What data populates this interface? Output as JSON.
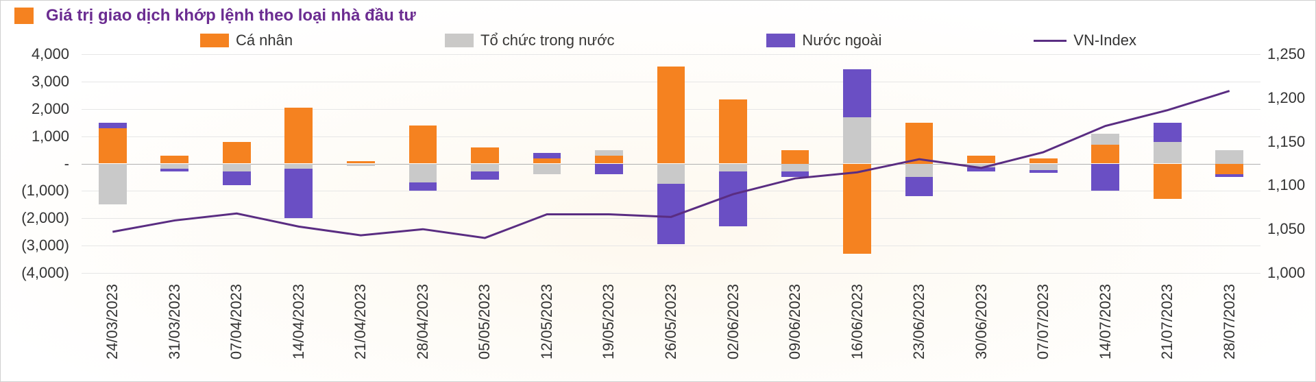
{
  "chart": {
    "type": "bar+line",
    "title": "Giá trị giao dịch khớp lệnh theo loại nhà đầu tư",
    "title_color": "#6b2c91",
    "title_fontsize": 24,
    "marker_color": "#f58220",
    "background_color": "#ffffff",
    "grid_color": "#e6e6e6",
    "zero_line_color": "#b0b0b0",
    "axis_label_fontsize": 22,
    "axis_label_color": "#333333",
    "legend": [
      {
        "label": "Cá nhân",
        "color": "#f58220",
        "shape": "swatch"
      },
      {
        "label": "Tổ chức trong nước",
        "color": "#c9c9c9",
        "shape": "swatch"
      },
      {
        "label": "Nước ngoài",
        "color": "#6a4fc4",
        "shape": "swatch"
      },
      {
        "label": "VN-Index",
        "color": "#5a2d82",
        "shape": "line"
      }
    ],
    "y_left": {
      "min": -4000,
      "max": 4000,
      "ticks": [
        4000,
        3000,
        2000,
        1000,
        0,
        -1000,
        -2000,
        -3000,
        -4000
      ],
      "tick_labels": [
        "4,000",
        "3,000",
        "2,000",
        "1,000",
        "-",
        "(1,000)",
        "(2,000)",
        "(3,000)",
        "(4,000)"
      ]
    },
    "y_right": {
      "min": 1000,
      "max": 1250,
      "ticks": [
        1250,
        1200,
        1150,
        1100,
        1050,
        1000
      ],
      "tick_labels": [
        "1,250",
        "1,200",
        "1,150",
        "1,100",
        "1,050",
        "1,000"
      ]
    },
    "categories": [
      "24/03/2023",
      "31/03/2023",
      "07/04/2023",
      "14/04/2023",
      "21/04/2023",
      "28/04/2023",
      "05/05/2023",
      "12/05/2023",
      "19/05/2023",
      "26/05/2023",
      "02/06/2023",
      "09/06/2023",
      "16/06/2023",
      "23/06/2023",
      "30/06/2023",
      "07/07/2023",
      "14/07/2023",
      "21/07/2023",
      "28/07/2023"
    ],
    "series_bar": {
      "ca_nhan": {
        "label": "Cá nhân",
        "color": "#f58220",
        "values": [
          1300,
          300,
          800,
          2050,
          100,
          1400,
          600,
          200,
          300,
          3550,
          2350,
          500,
          -3300,
          1500,
          300,
          200,
          700,
          -1300,
          -400
        ]
      },
      "to_chuc": {
        "label": "Tổ chức trong nước",
        "color": "#c9c9c9",
        "values": [
          -1500,
          -200,
          -300,
          -200,
          -100,
          -700,
          -300,
          -400,
          200,
          -750,
          -300,
          -300,
          1700,
          -500,
          -150,
          -250,
          400,
          800,
          500
        ]
      },
      "nuoc_ngoai": {
        "label": "Nước ngoài",
        "color": "#6a4fc4",
        "values": [
          200,
          -100,
          -500,
          -1800,
          0,
          -300,
          -300,
          200,
          -400,
          -2200,
          -2000,
          -200,
          1750,
          -700,
          -150,
          -100,
          -1000,
          700,
          -100
        ]
      }
    },
    "series_line": {
      "vn_index": {
        "label": "VN-Index",
        "color": "#5a2d82",
        "width": 3,
        "values": [
          1047,
          1060,
          1068,
          1053,
          1043,
          1050,
          1040,
          1067,
          1067,
          1064,
          1090,
          1108,
          1115,
          1130,
          1120,
          1138,
          1168,
          1186,
          1208
        ]
      }
    },
    "bar_width_ratio": 0.45
  }
}
